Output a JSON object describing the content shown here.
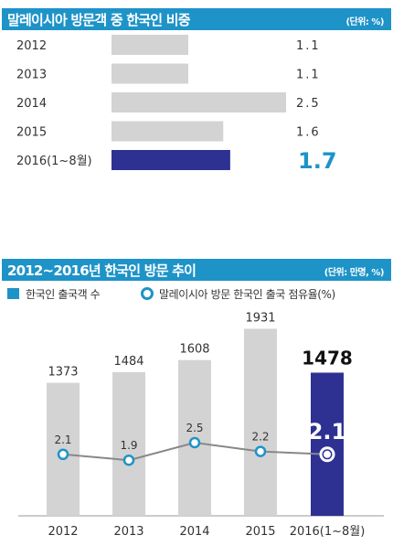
{
  "chart_data": [
    {
      "type": "bar",
      "title": "말레이시아 방문객 중 한국인 비중",
      "unit_label": "(단위: %)",
      "categories": [
        "2012",
        "2013",
        "2014",
        "2015",
        "2016(1~8월)"
      ],
      "values": [
        1.1,
        1.1,
        2.5,
        1.6,
        1.7
      ],
      "value_labels": [
        "1.1",
        "1.1",
        "2.5",
        "1.6",
        "1.7"
      ],
      "orientation": "horizontal",
      "xlim": [
        0,
        2.5
      ],
      "highlight_index": 4,
      "colors": {
        "bar": "#d3d3d3",
        "highlight": "#2e3192",
        "highlight_label": "#1e93c8"
      }
    },
    {
      "type": "bar",
      "title": "2012~2016년 한국인 방문 추이",
      "unit_label": "(단위: 만명, %)",
      "categories": [
        "2012",
        "2013",
        "2014",
        "2015",
        "2016(1~8월)"
      ],
      "series": [
        {
          "name": "한국인 출국객 수",
          "kind": "bar",
          "values": [
            1373,
            1484,
            1608,
            1931,
            1478
          ],
          "value_labels": [
            "1373",
            "1484",
            "1608",
            "1931",
            "1478"
          ]
        },
        {
          "name": "말레이시아 방문 한국인 출국 점유율(%)",
          "kind": "line",
          "values": [
            2.1,
            1.9,
            2.5,
            2.2,
            2.1
          ],
          "value_labels": [
            "2.1",
            "1.9",
            "2.5",
            "2.2",
            "2.1"
          ]
        }
      ],
      "bar_ylim": [
        0,
        2200
      ],
      "line_ylim": [
        0,
        4
      ],
      "highlight_index": 4,
      "colors": {
        "bar": "#d3d3d3",
        "highlight": "#2e3192",
        "line": "#888888",
        "marker": "#1e93c8",
        "header": "#1e93c8"
      }
    }
  ]
}
